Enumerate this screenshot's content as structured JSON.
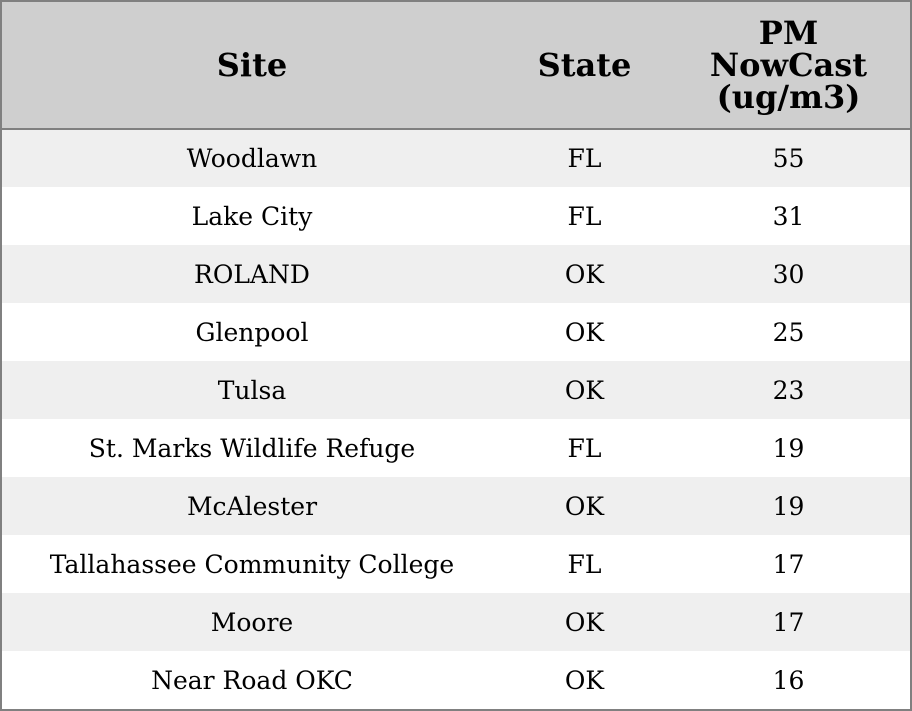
{
  "chart_data": {
    "type": "table",
    "columns": [
      "Site",
      "State",
      "PM NowCast (ug/m3)"
    ],
    "header_lines": {
      "site": [
        "Site"
      ],
      "state": [
        "State"
      ],
      "pm": [
        "PM",
        "NowCast",
        "(ug/m3)"
      ]
    },
    "rows": [
      {
        "site": "Woodlawn",
        "state": "FL",
        "pm": 55
      },
      {
        "site": "Lake City",
        "state": "FL",
        "pm": 31
      },
      {
        "site": "ROLAND",
        "state": "OK",
        "pm": 30
      },
      {
        "site": "Glenpool",
        "state": "OK",
        "pm": 25
      },
      {
        "site": "Tulsa",
        "state": "OK",
        "pm": 23
      },
      {
        "site": "St. Marks Wildlife Refuge",
        "state": "FL",
        "pm": 19
      },
      {
        "site": "McAlester",
        "state": "OK",
        "pm": 19
      },
      {
        "site": "Tallahassee Community College",
        "state": "FL",
        "pm": 17
      },
      {
        "site": "Moore",
        "state": "OK",
        "pm": 17
      },
      {
        "site": "Near Road OKC",
        "state": "OK",
        "pm": 16
      }
    ]
  },
  "colors": {
    "header_bg": "#cfcfcf",
    "row_alt_bg": "#efefef",
    "row_bg": "#ffffff",
    "border": "#808080"
  }
}
